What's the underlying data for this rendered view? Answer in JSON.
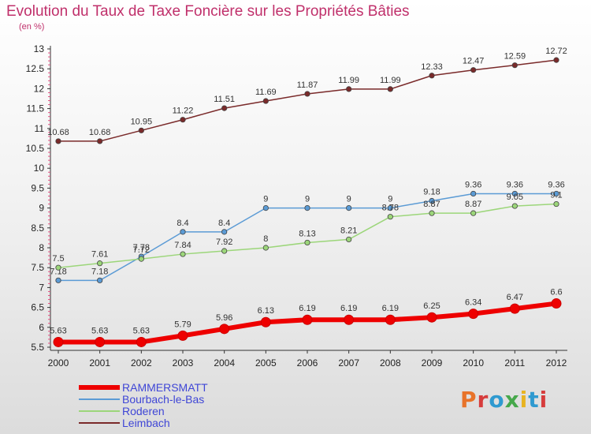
{
  "title": "Evolution du Taux de Taxe Foncière sur les Propriétés Bâties",
  "unit": "(en %)",
  "logo": {
    "text": "Proxiti",
    "colors": [
      "#e8732a",
      "#d63c3c",
      "#2f9ad0",
      "#46a84b",
      "#e8b320",
      "#2f9ad0",
      "#d63c3c"
    ]
  },
  "chart_data": {
    "type": "line",
    "title": "Evolution du Taux de Taxe Foncière sur les Propriétés Bâties",
    "ylabel": "(en %)",
    "xlabel": "",
    "x": [
      "2000",
      "2001",
      "2002",
      "2003",
      "2004",
      "2005",
      "2006",
      "2007",
      "2008",
      "2009",
      "2010",
      "2011",
      "2012"
    ],
    "ylim": [
      5.5,
      13
    ],
    "yticks": [
      "5.5",
      "6",
      "6.5",
      "7",
      "7.5",
      "8",
      "8.5",
      "9",
      "9.5",
      "10",
      "10.5",
      "11",
      "11.5",
      "12",
      "12.5",
      "13"
    ],
    "grid": false,
    "legend": "bottom-left",
    "series": [
      {
        "name": "Leimbach",
        "color": "#7a2a2a",
        "width": 1.5,
        "values": [
          10.68,
          10.68,
          10.95,
          11.22,
          11.51,
          11.69,
          11.87,
          11.99,
          11.99,
          12.33,
          12.47,
          12.59,
          12.72
        ],
        "labels": [
          "10.68",
          "10.68",
          "10.95",
          "11.22",
          "11.51",
          "11.69",
          "11.87",
          "11.99",
          "11.99",
          "12.33",
          "12.47",
          "12.59",
          "12.72"
        ]
      },
      {
        "name": "Bourbach-le-Bas",
        "color": "#5b9bd5",
        "width": 1.5,
        "values": [
          7.18,
          7.18,
          7.78,
          8.4,
          8.4,
          9,
          9,
          9,
          9,
          9.18,
          9.36,
          9.36,
          9.36
        ],
        "labels": [
          "7.18",
          "7.18",
          "7.78",
          "8.4",
          "8.4",
          "9",
          "9",
          "9",
          "9",
          "9.18",
          "9.36",
          "9.36",
          "9.36"
        ]
      },
      {
        "name": "Roderen",
        "color": "#9cd67a",
        "width": 1.5,
        "values": [
          7.5,
          7.61,
          7.72,
          7.84,
          7.92,
          8,
          8.13,
          8.21,
          8.78,
          8.87,
          8.87,
          9.05,
          9.1
        ],
        "labels": [
          "7.5",
          "7.61",
          "7.72",
          "7.84",
          "7.92",
          "8",
          "8.13",
          "8.21",
          "8.78",
          "8.87",
          "8.87",
          "9.05",
          "9.1"
        ]
      },
      {
        "name": "RAMMERSMATT",
        "color": "#ee0000",
        "width": 6,
        "values": [
          5.63,
          5.63,
          5.63,
          5.79,
          5.96,
          6.13,
          6.19,
          6.19,
          6.19,
          6.25,
          6.34,
          6.47,
          6.6
        ],
        "labels": [
          "5.63",
          "5.63",
          "5.63",
          "5.79",
          "5.96",
          "6.13",
          "6.19",
          "6.19",
          "6.19",
          "6.25",
          "6.34",
          "6.47",
          "6.6"
        ]
      }
    ]
  },
  "legend": [
    {
      "name": "RAMMERSMATT",
      "color": "#ee0000",
      "width": 6
    },
    {
      "name": "Bourbach-le-Bas",
      "color": "#5b9bd5",
      "width": 2
    },
    {
      "name": "Roderen",
      "color": "#9cd67a",
      "width": 2
    },
    {
      "name": "Leimbach",
      "color": "#7a2a2a",
      "width": 2
    }
  ]
}
